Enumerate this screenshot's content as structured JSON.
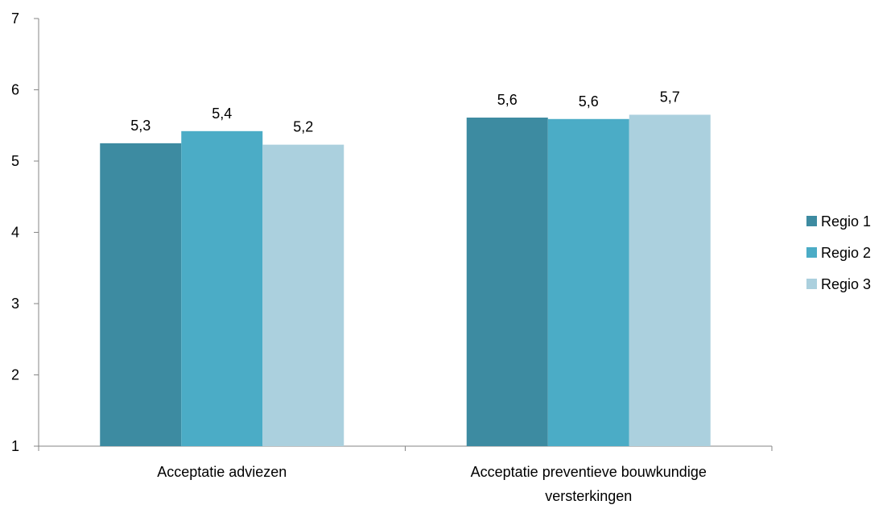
{
  "chart_data": {
    "type": "bar",
    "categories": [
      [
        "Acceptatie adviezen"
      ],
      [
        "Acceptatie preventieve bouwkundige",
        "versterkingen"
      ]
    ],
    "series": [
      {
        "name": "Regio 1",
        "values": [
          5.25,
          5.61
        ],
        "labels": [
          "5,3",
          "5,6"
        ],
        "color": "#3d8ba1"
      },
      {
        "name": "Regio 2",
        "values": [
          5.42,
          5.59
        ],
        "labels": [
          "5,4",
          "5,6"
        ],
        "color": "#4bacc6"
      },
      {
        "name": "Regio 3",
        "values": [
          5.23,
          5.65
        ],
        "labels": [
          "5,2",
          "5,7"
        ],
        "color": "#abd0de"
      }
    ],
    "yticks": [
      1,
      2,
      3,
      4,
      5,
      6,
      7
    ],
    "ylim": [
      1,
      7
    ],
    "grid": false,
    "legend_position": "right",
    "title": "",
    "xlabel": "",
    "ylabel": ""
  }
}
